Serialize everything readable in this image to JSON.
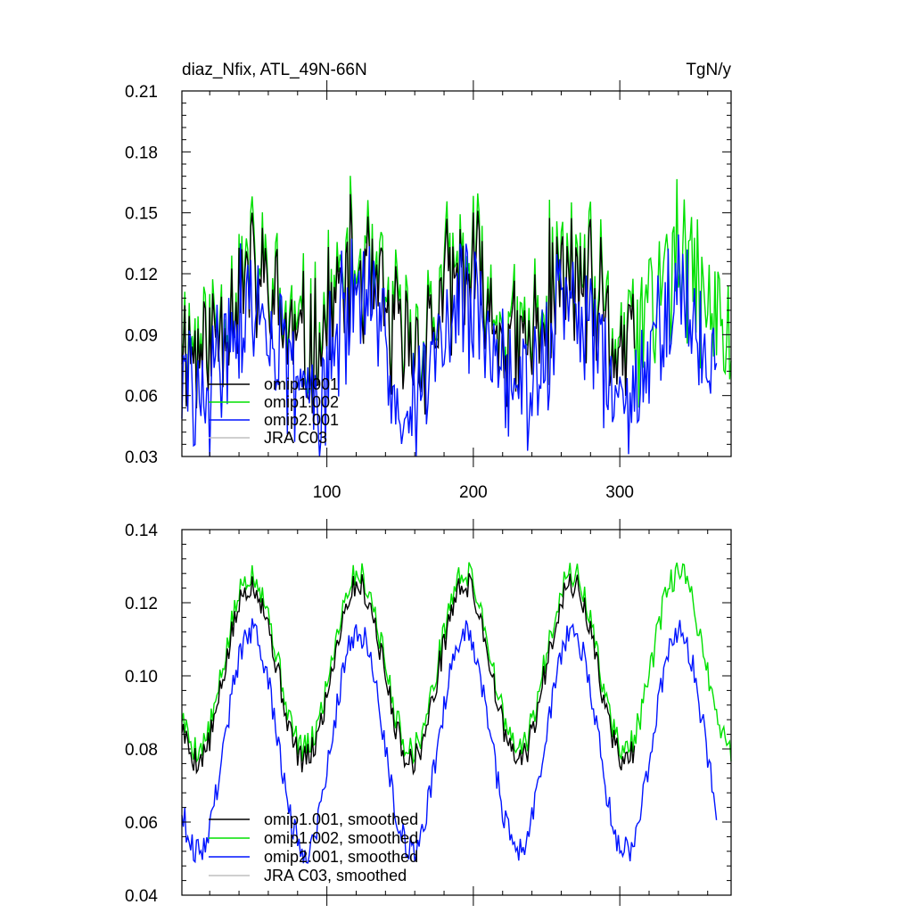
{
  "chart_data": [
    {
      "type": "line",
      "title_left": "diaz_Nfix, ATL_49N-66N",
      "title_right": "TgN/y",
      "xlim": [
        1,
        376
      ],
      "ylim": [
        0.03,
        0.21
      ],
      "yticks": [
        0.03,
        0.06,
        0.09,
        0.12,
        0.15,
        0.18,
        0.21
      ],
      "ytick_labels": [
        "0.03",
        "0.06",
        "0.09",
        "0.12",
        "0.15",
        "0.18",
        "0.21"
      ],
      "xticks": [
        100,
        200,
        300
      ],
      "xtick_labels": [
        "100",
        "200",
        "300"
      ],
      "legend_position": "bottom-left",
      "series": [
        {
          "name": "omip1.001",
          "color": "#000000",
          "n": 310,
          "base": 0.1,
          "seasonal_amp": 0.018,
          "noise_amp": 0.032,
          "seed": 11,
          "trend": 0.0
        },
        {
          "name": "omip1.002",
          "color": "#00e000",
          "n": 376,
          "base": 0.105,
          "seasonal_amp": 0.018,
          "noise_amp": 0.035,
          "seed": 11,
          "trend": 0.0
        },
        {
          "name": "omip2.001",
          "color": "#0014ff",
          "n": 366,
          "base": 0.082,
          "seasonal_amp": 0.022,
          "noise_amp": 0.03,
          "seed": 29,
          "trend": 0.0
        },
        {
          "name": "JRA C03",
          "color": "#bfbfbf",
          "n": 0,
          "base": 0.0,
          "seasonal_amp": 0.0,
          "noise_amp": 0.0,
          "seed": 1,
          "trend": 0.0
        }
      ]
    },
    {
      "type": "line",
      "ylim": [
        0.04,
        0.14
      ],
      "xlim": [
        1,
        376
      ],
      "yticks": [
        0.04,
        0.06,
        0.08,
        0.1,
        0.12,
        0.14
      ],
      "ytick_labels": [
        "0.04",
        "0.06",
        "0.08",
        "0.10",
        "0.12",
        "0.14"
      ],
      "xticks": [
        100,
        200,
        300
      ],
      "legend_position": "bottom-left",
      "series": [
        {
          "name": "omip1.001, smoothed",
          "color": "#000000",
          "n": 310,
          "base": 0.101,
          "seasonal_amp": 0.024,
          "noise_amp": 0.004,
          "seed": 5,
          "trend": 0.0
        },
        {
          "name": "omip1.002, smoothed",
          "color": "#00e000",
          "n": 376,
          "base": 0.104,
          "seasonal_amp": 0.024,
          "noise_amp": 0.004,
          "seed": 5,
          "trend": 0.0
        },
        {
          "name": "omip2.001, smoothed",
          "color": "#0014ff",
          "n": 366,
          "base": 0.082,
          "seasonal_amp": 0.03,
          "noise_amp": 0.004,
          "seed": 9,
          "trend": 0.0
        },
        {
          "name": "JRA C03, smoothed",
          "color": "#bfbfbf",
          "n": 0,
          "base": 0.0,
          "seasonal_amp": 0.0,
          "noise_amp": 0.0,
          "seed": 1,
          "trend": 0.0
        }
      ]
    }
  ]
}
